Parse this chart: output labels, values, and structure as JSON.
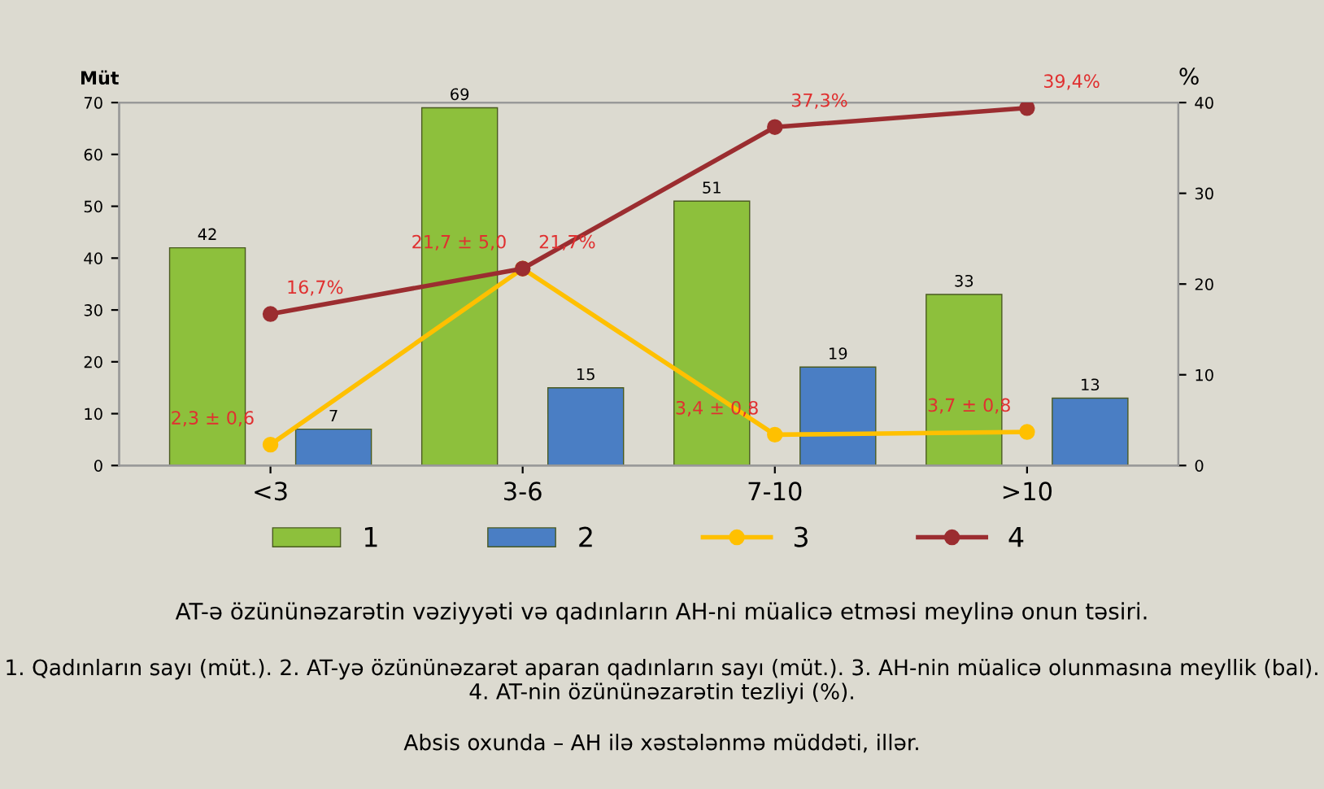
{
  "chart_data": {
    "type": "bar",
    "title": "AT-ə özününəzarətin vəziyyəti və qadınların AH-ni müalicə etməsi meylinə onun təsiri.",
    "annotations": [
      "1. Qadınların sayı (müt.). 2. AT-yə özününəzarət aparan qadınların sayı (müt.). 3. AH-nin müalicə olunmasına meyllik (bal). 4. AT-nin özününəzarətin tezliyi (%).",
      "Absis oxunda – AH ilə xəstələnmə müddəti, illər."
    ],
    "ylabel": "Müt",
    "y2label": "%",
    "categories": [
      "<3",
      "3-6",
      "7-10",
      ">10"
    ],
    "series": [
      {
        "name": "1",
        "color": "#8dc03c",
        "values": [
          42,
          69,
          51,
          33
        ]
      },
      {
        "name": "2",
        "color": "#4a7ec4",
        "values": [
          7,
          15,
          19,
          13
        ]
      },
      {
        "name": "3",
        "type": "line",
        "axis": "y2",
        "color": "#ffc000",
        "values": [
          2.3,
          21.7,
          3.4,
          3.7
        ],
        "value_labels": [
          "2,3 ± 0,6",
          "21,7 ± 5,0",
          "3,4 ± 0,8",
          "3,7 ± 0,8"
        ]
      },
      {
        "name": "4",
        "type": "line",
        "axis": "y2",
        "color": "#9b2d30",
        "values": [
          16.7,
          21.7,
          37.3,
          39.4
        ],
        "value_labels": [
          "16,7%",
          "21,7%",
          "37,3%",
          "39,4%"
        ]
      }
    ],
    "ylim": [
      0,
      70
    ],
    "yticks": [
      0,
      10,
      20,
      30,
      40,
      50,
      60,
      70
    ],
    "y2lim": [
      0,
      40
    ],
    "y2ticks": [
      0,
      10,
      20,
      30,
      40
    ],
    "data_labels": true,
    "marker": "circle",
    "legend": "bottom",
    "grid": false
  }
}
